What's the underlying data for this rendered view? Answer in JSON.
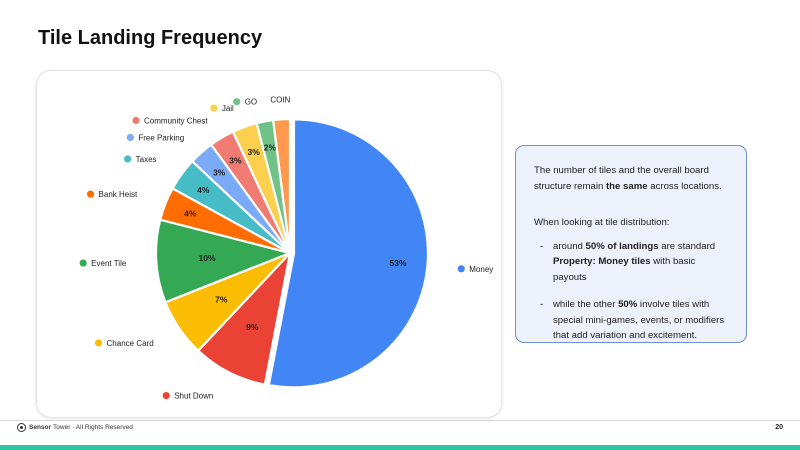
{
  "title": "Tile Landing Frequency",
  "chart_data": {
    "type": "pie",
    "title": "",
    "slices": [
      {
        "label": "Money",
        "value": 53,
        "value_label": "53%",
        "color": "#4285f4",
        "exploded": true
      },
      {
        "label": "Shut Down",
        "value": 9,
        "value_label": "9%",
        "color": "#ea4335"
      },
      {
        "label": "Chance Card",
        "value": 7,
        "value_label": "7%",
        "color": "#fbbc04"
      },
      {
        "label": "Event Tile",
        "value": 10,
        "value_label": "10%",
        "color": "#34a853"
      },
      {
        "label": "Bank Heist",
        "value": 4,
        "value_label": "4%",
        "color": "#ff6d01"
      },
      {
        "label": "Taxes",
        "value": 4,
        "value_label": "4%",
        "color": "#46bdc6"
      },
      {
        "label": "Free Parking",
        "value": 3,
        "value_label": "3%",
        "color": "#7baaf7"
      },
      {
        "label": "Community Chest",
        "value": 3,
        "value_label": "3%",
        "color": "#f07b72"
      },
      {
        "label": "Jail",
        "value": 3,
        "value_label": "3%",
        "color": "#fcd04f"
      },
      {
        "label": "GO",
        "value": 2,
        "value_label": "2%",
        "color": "#71c287"
      },
      {
        "label": "COIN",
        "value": 2,
        "value_label": "",
        "color": "#ff994d"
      }
    ],
    "legend": "labels around pie with colored dot markers"
  },
  "info": {
    "intro_1": "The number of tiles and the overall board structure remain ",
    "intro_bold": "the same",
    "intro_2": " across locations.",
    "lead": "When looking at tile distribution:",
    "b1_1": "around ",
    "b1_bold1": "50% of landings",
    "b1_2": " are standard ",
    "b1_bold2": "Property: Money tiles",
    "b1_3": " with basic payouts",
    "b2_1": "while the other ",
    "b2_bold": "50%",
    "b2_2": " involve tiles with special mini-games, events, or modifiers that add variation and excitement."
  },
  "footer": {
    "brand_bold": "Sensor",
    "brand_rest": "Tower · All Rights Reserved",
    "page_number": "20",
    "accent_color": "#2ec4a6"
  }
}
